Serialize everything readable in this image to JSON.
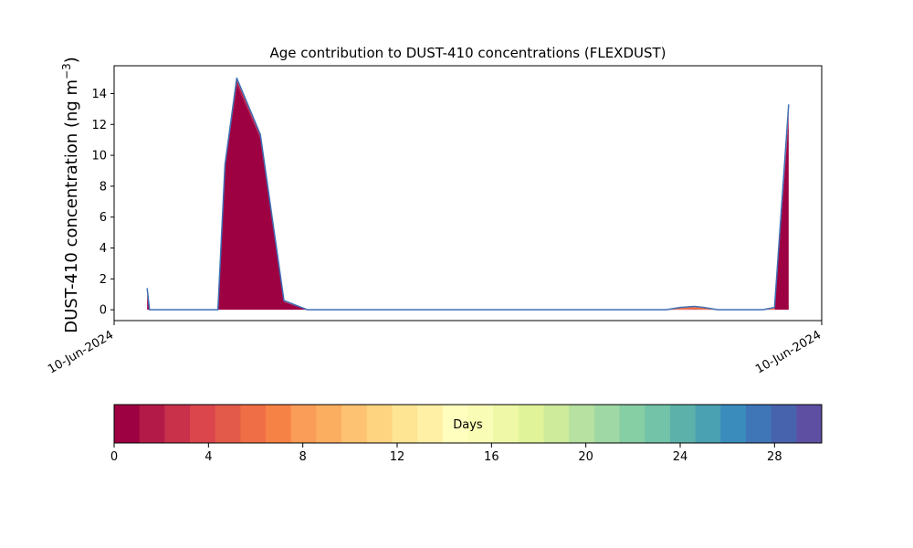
{
  "chart_data": {
    "type": "area",
    "title": "Age contribution to DUST-410 concentrations (FLEXDUST)",
    "ylabel_main": "DUST-410 concentration (ng m",
    "ylabel_sup": "−3",
    "ylabel_close": ")",
    "xlabel": "",
    "x_tick_labels": [
      "10-Jun-2024",
      "10-Jun-2024"
    ],
    "x_range": [
      0,
      30
    ],
    "ylim": [
      -0.7,
      15.8
    ],
    "y_ticks": [
      0,
      2,
      4,
      6,
      8,
      10,
      12,
      14
    ],
    "grid": false,
    "x": [
      1.4,
      1.5,
      4.4,
      4.7,
      5.2,
      6.2,
      7.2,
      8.2,
      23.4,
      24.0,
      24.6,
      25.0,
      25.6,
      27.0,
      27.5,
      28.0,
      28.6
    ],
    "series": [
      {
        "age_days": 0,
        "values": [
          0.9,
          0.0,
          0.0,
          9.2,
          14.6,
          11.1,
          0.5,
          0.0,
          0.0,
          0.0,
          0.0,
          0.0,
          0.0,
          0.0,
          0.0,
          0.0,
          12.3
        ]
      },
      {
        "age_days": 1,
        "values": [
          0.1,
          0.0,
          0.0,
          0.15,
          0.25,
          0.15,
          0.05,
          0.0,
          0.0,
          0.02,
          0.03,
          0.02,
          0.0,
          0.0,
          0.0,
          0.02,
          0.3
        ]
      },
      {
        "age_days": 5,
        "values": [
          0.3,
          0.0,
          0.0,
          0.05,
          0.1,
          0.05,
          0.05,
          0.0,
          0.0,
          0.1,
          0.15,
          0.1,
          0.0,
          0.0,
          0.0,
          0.08,
          0.4
        ]
      },
      {
        "age_days": 8,
        "values": [
          0.1,
          0.0,
          0.0,
          0.0,
          0.05,
          0.05,
          0.0,
          0.0,
          0.0,
          0.03,
          0.04,
          0.03,
          0.0,
          0.0,
          0.0,
          0.05,
          0.3
        ]
      }
    ],
    "total_line_color": "#3f6fb5",
    "colorbar": {
      "label": "Days",
      "range": [
        0,
        30
      ],
      "ticks": [
        0,
        4,
        8,
        12,
        16,
        20,
        24,
        28
      ],
      "colors": [
        "#9e0142",
        "#b31a47",
        "#c9314b",
        "#da464c",
        "#e45a4a",
        "#ef6e45",
        "#f68245",
        "#f99d58",
        "#fcae60",
        "#fdc272",
        "#fed481",
        "#fee593",
        "#fff0a6",
        "#fffebe",
        "#f8fcb4",
        "#eef8a7",
        "#e0f399",
        "#cdeb9b",
        "#b6e1a0",
        "#9fd8a4",
        "#86cea4",
        "#72c3a7",
        "#5cb2aa",
        "#4aa1b2",
        "#3a8cbd",
        "#3e76b7",
        "#4863ad",
        "#5e4fa2"
      ]
    }
  }
}
